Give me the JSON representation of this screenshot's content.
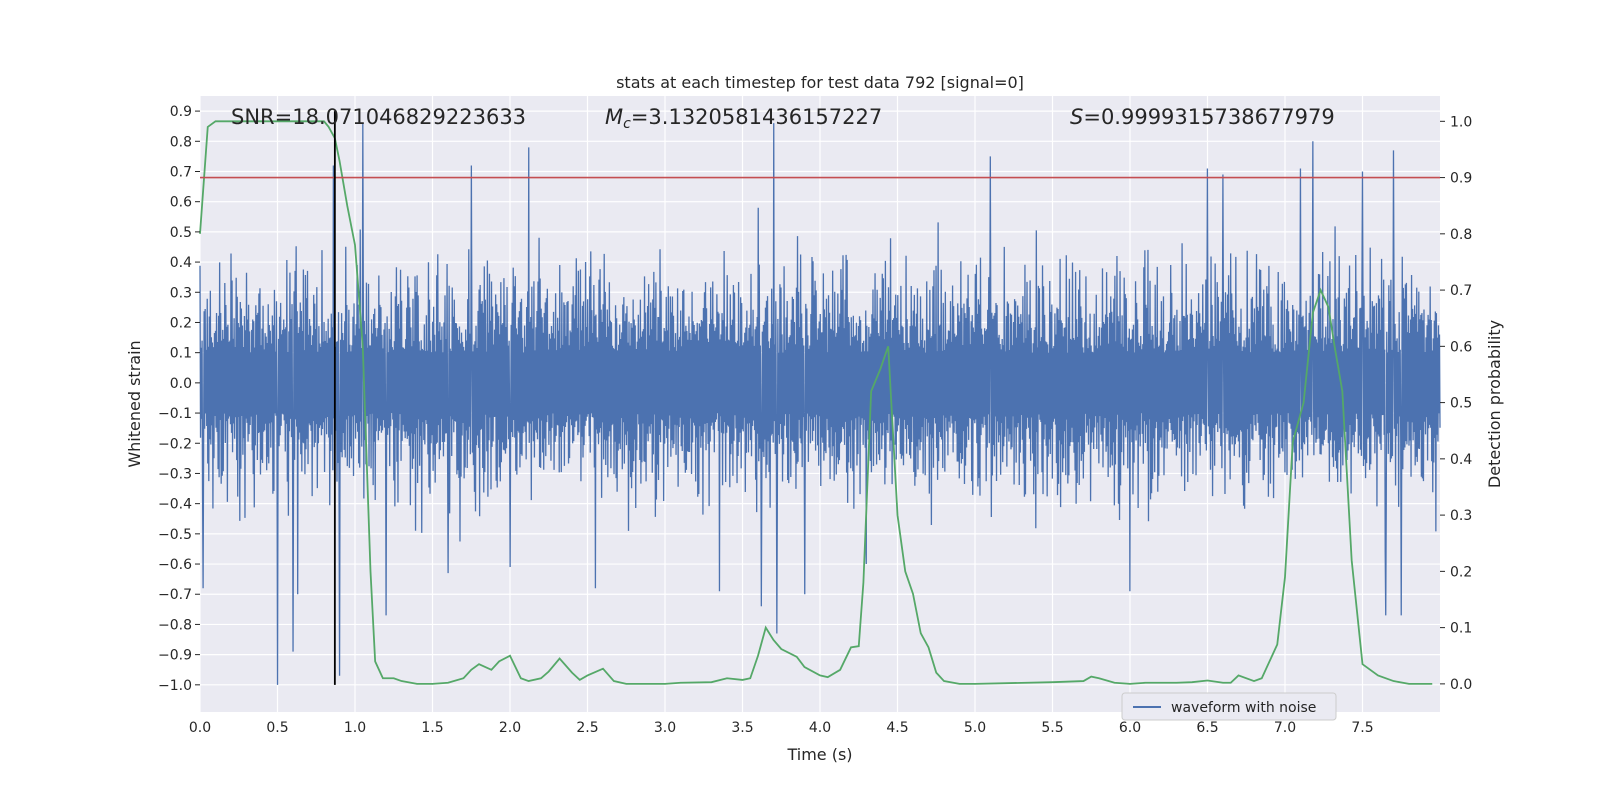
{
  "chart_data": {
    "type": "line",
    "title": "stats at each timestep for test data 792 [signal=0]",
    "xlabel": "Time (s)",
    "ylabel_left": "Whitened strain",
    "ylabel_right": "Detection probability",
    "xlim": [
      0.0,
      8.0
    ],
    "ylim_left": [
      -1.09,
      0.95
    ],
    "ylim_right": [
      -0.05,
      1.045
    ],
    "x_ticks": [
      "0.0",
      "0.5",
      "1.0",
      "1.5",
      "2.0",
      "2.5",
      "3.0",
      "3.5",
      "4.0",
      "4.5",
      "5.0",
      "5.5",
      "6.0",
      "6.5",
      "7.0",
      "7.5"
    ],
    "y_ticks_left": [
      "0.9",
      "0.8",
      "0.7",
      "0.6",
      "0.5",
      "0.4",
      "0.3",
      "0.2",
      "0.1",
      "0.0",
      "-0.1",
      "-0.2",
      "-0.3",
      "-0.4",
      "-0.5",
      "-0.6",
      "-0.7",
      "-0.8",
      "-0.9",
      "-1.0"
    ],
    "y_ticks_right": [
      "1.0",
      "0.9",
      "0.8",
      "0.7",
      "0.6",
      "0.5",
      "0.4",
      "0.3",
      "0.2",
      "0.1",
      "0.0"
    ],
    "grid": true,
    "legend": {
      "position": "lower-right",
      "entries": [
        "waveform with noise"
      ]
    },
    "annotations": {
      "snr": "SNR=18.071046829223633",
      "mc_prefix": "M",
      "mc_sub": "c",
      "mc_value": "=3.1320581436157227",
      "s_prefix": "S",
      "s_value": "=0.9999315738677979"
    },
    "threshold": {
      "value": 0.9,
      "axis": "right",
      "color": "#c44e52"
    },
    "marker_time": 0.87,
    "series": [
      {
        "name": "waveform with noise",
        "axis": "left",
        "color": "#4c72b0",
        "description": "whitened strain noise, dense band roughly -0.4 to 0.4 with spikes",
        "spikes": [
          [
            0.02,
            -0.68
          ],
          [
            0.5,
            -1.0
          ],
          [
            0.6,
            -0.89
          ],
          [
            0.63,
            -0.7
          ],
          [
            0.86,
            0.72
          ],
          [
            0.9,
            -0.97
          ],
          [
            1.05,
            0.86
          ],
          [
            1.2,
            -0.77
          ],
          [
            1.6,
            -0.63
          ],
          [
            1.75,
            0.72
          ],
          [
            2.0,
            -0.61
          ],
          [
            2.12,
            0.78
          ],
          [
            2.55,
            -0.68
          ],
          [
            3.35,
            -0.69
          ],
          [
            3.6,
            0.58
          ],
          [
            3.62,
            -0.74
          ],
          [
            3.7,
            0.86
          ],
          [
            3.72,
            -0.83
          ],
          [
            3.9,
            -0.7
          ],
          [
            4.3,
            -0.6
          ],
          [
            5.1,
            0.75
          ],
          [
            6.0,
            -0.69
          ],
          [
            6.5,
            0.71
          ],
          [
            6.6,
            0.69
          ],
          [
            7.1,
            0.71
          ],
          [
            7.18,
            0.8
          ],
          [
            7.5,
            0.7
          ],
          [
            7.65,
            -0.77
          ],
          [
            7.7,
            0.77
          ],
          [
            7.75,
            -0.77
          ]
        ]
      },
      {
        "name": "Detection probability",
        "axis": "right",
        "color": "#55a868",
        "x": [
          0.0,
          0.05,
          0.1,
          0.15,
          0.2,
          0.3,
          0.4,
          0.5,
          0.6,
          0.7,
          0.8,
          0.83,
          0.87,
          0.9,
          0.95,
          1.0,
          1.05,
          1.1,
          1.13,
          1.18,
          1.25,
          1.3,
          1.4,
          1.5,
          1.6,
          1.7,
          1.75,
          1.8,
          1.88,
          1.93,
          2.0,
          2.07,
          2.12,
          2.2,
          2.25,
          2.32,
          2.4,
          2.45,
          2.5,
          2.6,
          2.67,
          2.75,
          2.85,
          3.0,
          3.1,
          3.3,
          3.4,
          3.5,
          3.55,
          3.6,
          3.65,
          3.7,
          3.75,
          3.85,
          3.9,
          4.0,
          4.05,
          4.13,
          4.2,
          4.25,
          4.28,
          4.33,
          4.39,
          4.44,
          4.5,
          4.55,
          4.6,
          4.65,
          4.7,
          4.75,
          4.8,
          4.9,
          5.0,
          5.5,
          5.7,
          5.75,
          5.8,
          5.9,
          6.0,
          6.1,
          6.2,
          6.3,
          6.4,
          6.5,
          6.6,
          6.65,
          6.7,
          6.8,
          6.85,
          6.95,
          7.0,
          7.05,
          7.12,
          7.18,
          7.23,
          7.28,
          7.32,
          7.37,
          7.43,
          7.5,
          7.6,
          7.7,
          7.8,
          7.95
        ],
        "y": [
          0.8,
          0.99,
          1.0,
          1.0,
          1.0,
          1.0,
          1.0,
          1.0,
          1.0,
          1.0,
          1.0,
          0.99,
          0.97,
          0.93,
          0.85,
          0.78,
          0.6,
          0.2,
          0.04,
          0.01,
          0.01,
          0.005,
          0.0,
          0.0,
          0.002,
          0.01,
          0.025,
          0.035,
          0.025,
          0.04,
          0.05,
          0.01,
          0.005,
          0.01,
          0.022,
          0.045,
          0.02,
          0.007,
          0.015,
          0.027,
          0.005,
          0.0,
          0.0,
          0.0,
          0.002,
          0.003,
          0.01,
          0.007,
          0.01,
          0.05,
          0.1,
          0.078,
          0.062,
          0.048,
          0.03,
          0.015,
          0.012,
          0.025,
          0.065,
          0.067,
          0.18,
          0.52,
          0.56,
          0.6,
          0.3,
          0.2,
          0.16,
          0.09,
          0.065,
          0.02,
          0.005,
          0.0,
          0.0,
          0.003,
          0.005,
          0.013,
          0.01,
          0.002,
          0.0,
          0.002,
          0.002,
          0.002,
          0.003,
          0.006,
          0.002,
          0.002,
          0.015,
          0.005,
          0.01,
          0.07,
          0.19,
          0.43,
          0.5,
          0.66,
          0.7,
          0.67,
          0.6,
          0.52,
          0.22,
          0.035,
          0.015,
          0.005,
          0.0,
          0.0
        ]
      }
    ]
  }
}
